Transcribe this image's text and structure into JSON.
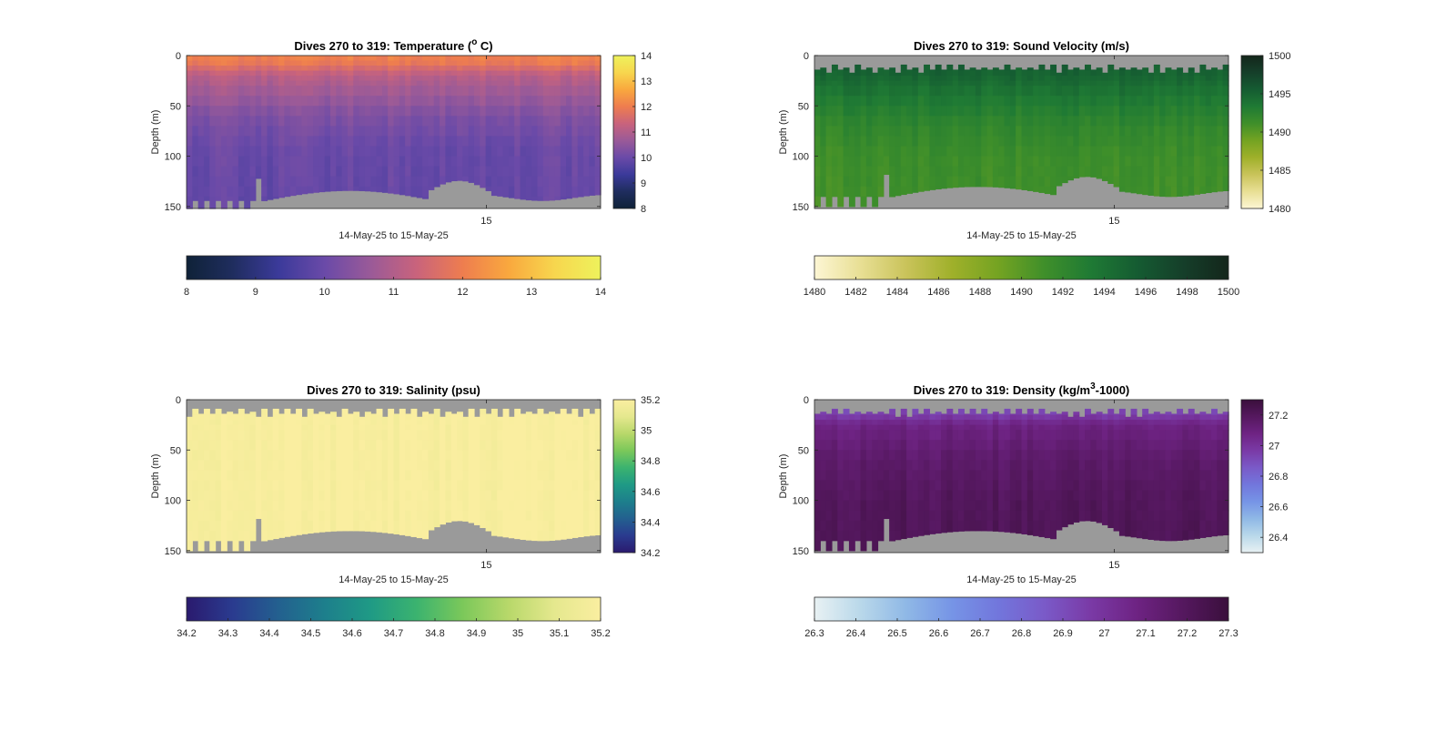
{
  "figure": {
    "background": "#ffffff",
    "nodata_color": "#9a9a9a"
  },
  "chart_data": [
    {
      "type": "heatmap",
      "key": "temperature",
      "title_main": "Dives 270 to 319: Temperature (",
      "title_sup": "o",
      "title_tail": " C)",
      "xlabel": "14-May-25 to 15-May-25",
      "ylabel": "Depth (m)",
      "xtick_labels": [
        "15"
      ],
      "ylim": [
        0,
        152
      ],
      "yticks": [
        0,
        50,
        100,
        150
      ],
      "clim": [
        8,
        14
      ],
      "colorbar_ticks": [
        8,
        9,
        10,
        11,
        12,
        13,
        14
      ],
      "horizontal_colorbar_ticks": [
        8,
        9,
        10,
        11,
        12,
        13,
        14
      ],
      "colormap": [
        "#0f2238",
        "#1f2d5e",
        "#3b3a9a",
        "#6a4aa8",
        "#9a5a98",
        "#c9637c",
        "#ee7d4f",
        "#f9a83e",
        "#f7d64e",
        "#eef25c"
      ],
      "top_gap": "none",
      "profile": [
        {
          "depth": 0,
          "value": 12.1
        },
        {
          "depth": 8,
          "value": 11.9
        },
        {
          "depth": 20,
          "value": 11.1
        },
        {
          "depth": 40,
          "value": 10.7
        },
        {
          "depth": 60,
          "value": 10.3
        },
        {
          "depth": 90,
          "value": 10.0
        },
        {
          "depth": 150,
          "value": 9.9
        }
      ]
    },
    {
      "type": "heatmap",
      "key": "sound_velocity",
      "title_main": "Dives 270 to 319: Sound Velocity (m/s)",
      "title_sup": "",
      "title_tail": "",
      "xlabel": "14-May-25 to 15-May-25",
      "ylabel": "Depth (m)",
      "xtick_labels": [
        "15"
      ],
      "ylim": [
        0,
        152
      ],
      "yticks": [
        0,
        50,
        100,
        150
      ],
      "clim": [
        1480,
        1500
      ],
      "colorbar_ticks": [
        1480,
        1485,
        1490,
        1495,
        1500
      ],
      "horizontal_colorbar_ticks": [
        1480,
        1482,
        1484,
        1486,
        1488,
        1490,
        1492,
        1494,
        1496,
        1498,
        1500
      ],
      "colormap": [
        "#fdf6d4",
        "#e8df94",
        "#c9c35a",
        "#9fb02a",
        "#74a322",
        "#3f8f2a",
        "#1f7a34",
        "#155c32",
        "#153f2a",
        "#14261b"
      ],
      "top_gap": "jagged",
      "profile": [
        {
          "depth": 0,
          "value": 1496.0
        },
        {
          "depth": 18,
          "value": 1495.0
        },
        {
          "depth": 40,
          "value": 1493.5
        },
        {
          "depth": 70,
          "value": 1492.0
        },
        {
          "depth": 100,
          "value": 1491.3
        },
        {
          "depth": 150,
          "value": 1491.0
        }
      ]
    },
    {
      "type": "heatmap",
      "key": "salinity",
      "title_main": "Dives 270 to 319: Salinity (psu)",
      "title_sup": "",
      "title_tail": "",
      "xlabel": "14-May-25 to 15-May-25",
      "ylabel": "Depth (m)",
      "xtick_labels": [
        "15"
      ],
      "ylim": [
        0,
        152
      ],
      "yticks": [
        0,
        50,
        100,
        150
      ],
      "clim": [
        34.2,
        35.2
      ],
      "colorbar_ticks": [
        34.2,
        34.4,
        34.6,
        34.8,
        35,
        35.2
      ],
      "horizontal_colorbar_ticks": [
        34.2,
        34.3,
        34.4,
        34.5,
        34.6,
        34.7,
        34.8,
        34.9,
        35,
        35.1,
        35.2
      ],
      "colormap": [
        "#2a1a6e",
        "#2a3b8f",
        "#23608f",
        "#1d7f8c",
        "#1f9a85",
        "#3bb36f",
        "#7bc85a",
        "#b8d86a",
        "#e5e88e",
        "#faeea0"
      ],
      "top_gap": "jagged",
      "profile": [
        {
          "depth": 0,
          "value": 35.19
        },
        {
          "depth": 150,
          "value": 35.19
        }
      ]
    },
    {
      "type": "heatmap",
      "key": "density",
      "title_main": "Dives 270 to 319: Density (kg/m",
      "title_sup": "3",
      "title_tail": "-1000)",
      "xlabel": "14-May-25 to 15-May-25",
      "ylabel": "Depth (m)",
      "xtick_labels": [
        "15"
      ],
      "ylim": [
        0,
        152
      ],
      "yticks": [
        0,
        50,
        100,
        150
      ],
      "clim": [
        26.3,
        27.3
      ],
      "colorbar_ticks": [
        26.4,
        26.6,
        26.8,
        27,
        27.2
      ],
      "horizontal_colorbar_ticks": [
        26.3,
        26.4,
        26.5,
        26.6,
        26.7,
        26.8,
        26.9,
        27,
        27.1,
        27.2,
        27.3
      ],
      "colormap": [
        "#e8f1f3",
        "#b9d8ea",
        "#8fb8e6",
        "#7694e6",
        "#7276dc",
        "#7a5ac8",
        "#7a3aa6",
        "#6e2383",
        "#55185f",
        "#3a0f3c"
      ],
      "top_gap": "jagged",
      "profile": [
        {
          "depth": 0,
          "value": 26.85
        },
        {
          "depth": 15,
          "value": 26.95
        },
        {
          "depth": 25,
          "value": 27.08
        },
        {
          "depth": 60,
          "value": 27.16
        },
        {
          "depth": 100,
          "value": 27.2
        },
        {
          "depth": 150,
          "value": 27.22
        }
      ]
    }
  ]
}
